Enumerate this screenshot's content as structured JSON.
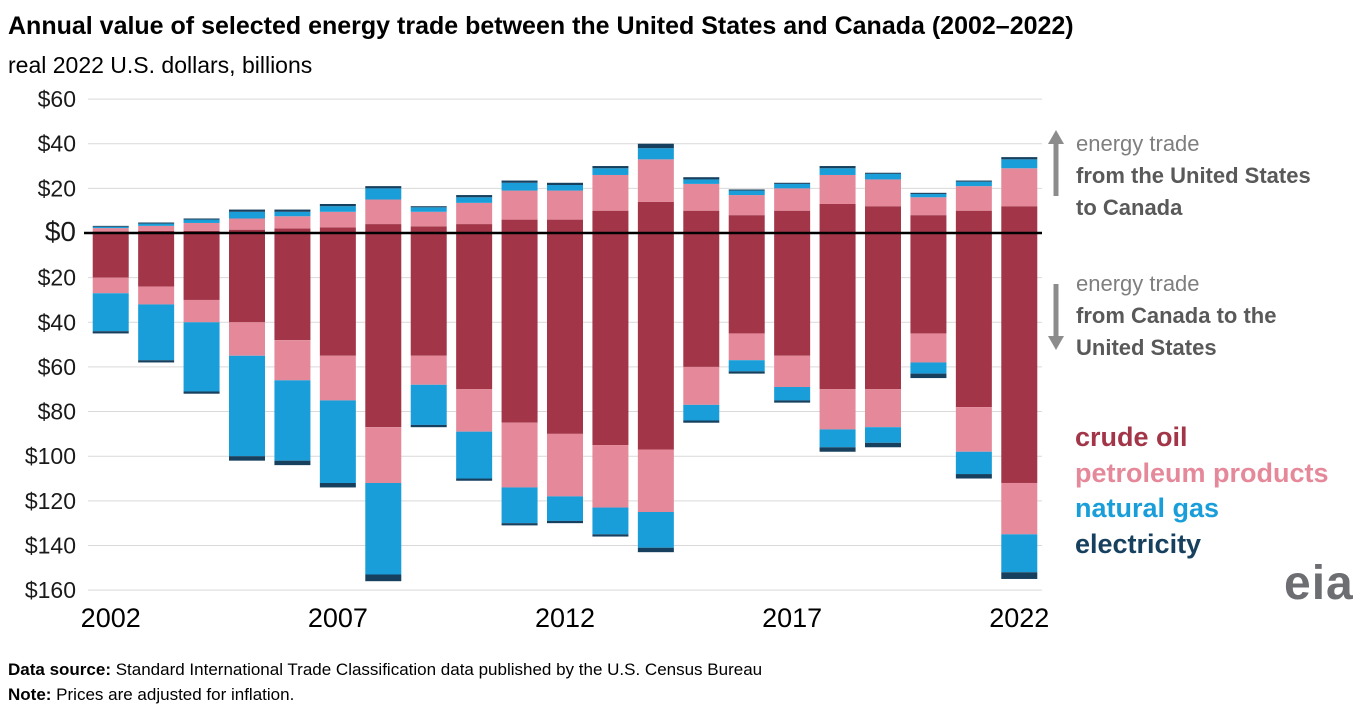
{
  "header": {
    "title": "Annual value of selected energy trade between the United States and Canada (2002–2022)",
    "subtitle": "real 2022 U.S. dollars, billions"
  },
  "annotations": {
    "top": {
      "plain": "energy trade",
      "bold": "from the United States to Canada"
    },
    "bottom": {
      "plain": "energy trade",
      "bold": "from Canada to the United States"
    }
  },
  "legend": {
    "items": [
      {
        "label": "crude oil",
        "color": "#a23648"
      },
      {
        "label": "petroleum products",
        "color": "#e5899a"
      },
      {
        "label": "natural gas",
        "color": "#1a9ed9"
      },
      {
        "label": "electricity",
        "color": "#16405e"
      }
    ]
  },
  "logo": {
    "text": "eia"
  },
  "footer": {
    "source_label": "Data source:",
    "source_text": " Standard International Trade Classification data published by the U.S. Census Bureau",
    "note_label": "Note:",
    "note_text": " Prices are adjusted for inflation."
  },
  "chart_data": {
    "type": "bar",
    "variant": "diverging-stacked",
    "title": "Annual value of selected energy trade between the United States and Canada (2002–2022)",
    "unit": "real 2022 U.S. dollars, billions",
    "ylim": [
      -160,
      60
    ],
    "grid": true,
    "years": [
      2002,
      2003,
      2004,
      2005,
      2006,
      2007,
      2008,
      2009,
      2010,
      2011,
      2012,
      2013,
      2014,
      2015,
      2016,
      2017,
      2018,
      2019,
      2020,
      2021,
      2022
    ],
    "x_tick_labels": [
      2002,
      2007,
      2012,
      2017,
      2022
    ],
    "y_ticks": [
      60,
      40,
      20,
      0,
      -20,
      -40,
      -60,
      -80,
      -100,
      -120,
      -140,
      -160
    ],
    "direction_up": "energy trade from the United States to Canada",
    "direction_down": "energy trade from Canada to the United States",
    "series_up": [
      {
        "key": "crude-oil",
        "name": "crude oil",
        "color": "#a23648",
        "values": [
          0.7,
          1,
          1,
          1.5,
          2,
          2.5,
          4,
          3,
          4,
          6,
          6,
          10,
          14,
          10,
          8,
          10,
          13,
          12,
          8,
          10,
          12
        ]
      },
      {
        "key": "petroleum-products",
        "name": "petroleum products",
        "color": "#e5899a",
        "values": [
          1.5,
          2.2,
          3.5,
          5,
          5.5,
          7,
          11,
          6.5,
          9.5,
          13,
          13,
          16,
          19,
          12,
          9,
          10,
          13,
          12,
          8,
          11,
          17
        ]
      },
      {
        "key": "natural-gas",
        "name": "natural gas",
        "color": "#1a9ed9",
        "values": [
          0.6,
          1,
          1.5,
          3,
          2,
          2.5,
          5,
          2,
          2.5,
          3.5,
          2.5,
          3,
          5,
          2,
          2,
          2,
          3,
          2.5,
          1.5,
          2,
          4
        ]
      },
      {
        "key": "electricity",
        "name": "electricity",
        "color": "#16405e",
        "values": [
          0.4,
          0.5,
          0.5,
          1,
          1,
          1,
          1,
          0.5,
          1,
          1,
          1,
          1,
          2,
          1,
          0.5,
          0.5,
          1,
          0.5,
          0.5,
          0.5,
          1
        ]
      }
    ],
    "series_down": [
      {
        "key": "crude-oil",
        "name": "crude oil",
        "color": "#a23648",
        "values": [
          20,
          24,
          30,
          40,
          48,
          55,
          87,
          55,
          70,
          85,
          90,
          95,
          97,
          60,
          45,
          55,
          70,
          70,
          45,
          78,
          112
        ]
      },
      {
        "key": "petroleum-products",
        "name": "petroleum products",
        "color": "#e5899a",
        "values": [
          7,
          8,
          10,
          15,
          18,
          20,
          25,
          13,
          19,
          29,
          28,
          28,
          28,
          17,
          12,
          14,
          18,
          17,
          13,
          20,
          23
        ]
      },
      {
        "key": "natural-gas",
        "name": "natural gas",
        "color": "#1a9ed9",
        "values": [
          17,
          25,
          31,
          45,
          36,
          37,
          41,
          18,
          21,
          16,
          11,
          12,
          16,
          7,
          5,
          6,
          8,
          7,
          5,
          10,
          17
        ]
      },
      {
        "key": "electricity",
        "name": "electricity",
        "color": "#16405e",
        "values": [
          1,
          1,
          1,
          2,
          2,
          2,
          3,
          1,
          1,
          1,
          1,
          1,
          2,
          1,
          1,
          1,
          2,
          2,
          2,
          2,
          3
        ]
      }
    ]
  }
}
